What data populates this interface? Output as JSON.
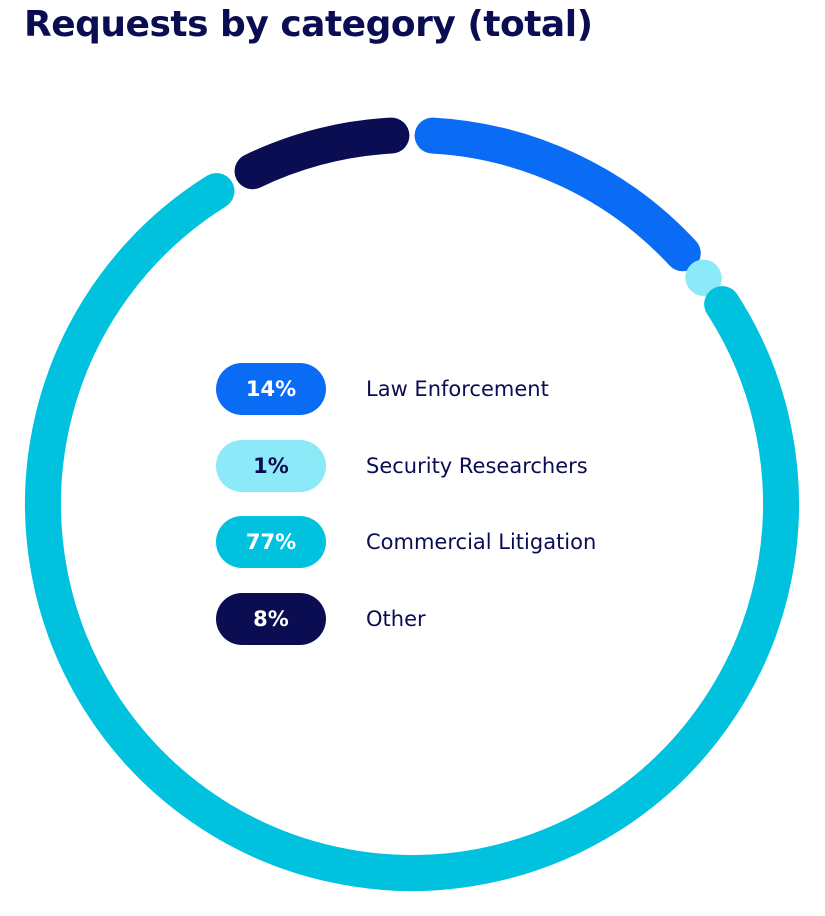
{
  "chart_data": {
    "type": "pie",
    "title": "Requests by category (total)",
    "categories": [
      "Law Enforcement",
      "Security Researchers",
      "Commercial Litigation",
      "Other"
    ],
    "values": [
      14,
      1,
      77,
      8
    ],
    "labels": [
      "14%",
      "1%",
      "77%",
      "8%"
    ],
    "unit": "%",
    "legend_position": "center",
    "colors": [
      "#0a6cf5",
      "#8ceaf8",
      "#00c2df",
      "#0b0d52"
    ],
    "label_colors": [
      "#ffffff",
      "#0b0d52",
      "#ffffff",
      "#ffffff"
    ]
  }
}
